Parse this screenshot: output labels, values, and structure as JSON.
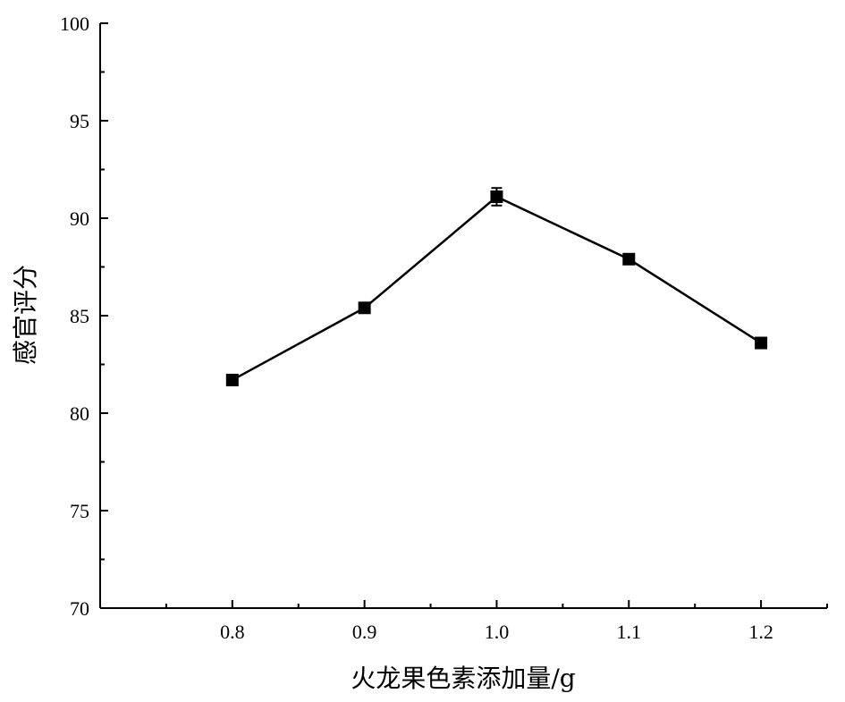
{
  "chart_data": {
    "type": "line",
    "title": "",
    "xlabel": "火龙果色素添加量/g",
    "ylabel": "感官评分",
    "x": [
      0.8,
      0.9,
      1.0,
      1.1,
      1.2
    ],
    "x_tick_labels": [
      "0.8",
      "0.9",
      "1.0",
      "1.1",
      "1.2"
    ],
    "xlim": [
      0.7,
      1.25
    ],
    "ylim": [
      70,
      100
    ],
    "y_ticks": [
      70,
      75,
      80,
      85,
      90,
      95,
      100
    ],
    "y_tick_labels": [
      "70",
      "75",
      "80",
      "85",
      "90",
      "95",
      "100"
    ],
    "series": [
      {
        "values": [
          81.7,
          85.4,
          91.1,
          87.9,
          83.6
        ],
        "errors": [
          0.15,
          0.2,
          0.45,
          0.2,
          0.15
        ],
        "color": "#000000",
        "marker": "square"
      }
    ],
    "grid": false,
    "legend": "none"
  }
}
